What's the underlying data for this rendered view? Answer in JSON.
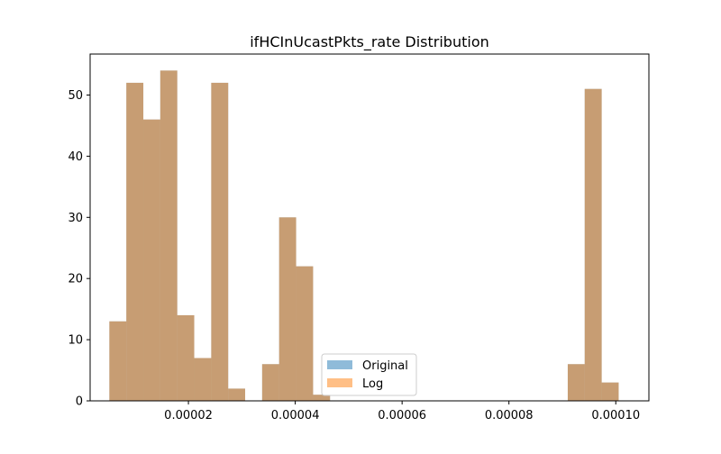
{
  "chart_data": {
    "type": "bar",
    "title": "ifHCInUcastPkts_rate Distribution",
    "xlabel": "",
    "ylabel": "",
    "xlim": [
      1.6e-06,
      0.0001062
    ],
    "ylim": [
      0,
      56.7
    ],
    "x_ticks": [
      {
        "value": 2e-05,
        "label": "0.00002"
      },
      {
        "value": 4e-05,
        "label": "0.00004"
      },
      {
        "value": 6e-05,
        "label": "0.00006"
      },
      {
        "value": 8e-05,
        "label": "0.00008"
      },
      {
        "value": 0.0001,
        "label": "0.00010"
      }
    ],
    "y_ticks": [
      {
        "value": 0,
        "label": "0"
      },
      {
        "value": 10,
        "label": "10"
      },
      {
        "value": 20,
        "label": "20"
      },
      {
        "value": 30,
        "label": "30"
      },
      {
        "value": 40,
        "label": "40"
      },
      {
        "value": 50,
        "label": "50"
      }
    ],
    "bin_edges": [
      5.2e-06,
      8.38e-06,
      1.156e-05,
      1.473e-05,
      1.791e-05,
      2.109e-05,
      2.427e-05,
      2.745e-05,
      3.062e-05,
      3.38e-05,
      3.698e-05,
      4.016e-05,
      4.334e-05,
      4.651e-05,
      4.969e-05,
      5.287e-05,
      5.605e-05,
      5.923e-05,
      6.24e-05,
      6.558e-05,
      6.876e-05,
      7.194e-05,
      7.512e-05,
      7.829e-05,
      8.147e-05,
      8.465e-05,
      8.783e-05,
      9.101e-05,
      9.418e-05,
      9.736e-05,
      0.00010054
    ],
    "grid": false,
    "legend_position": "lower-center",
    "series": [
      {
        "name": "Original",
        "color": "#1f77b4",
        "opacity": 0.5,
        "values": [
          13,
          52,
          46,
          54,
          14,
          7,
          52,
          2,
          0,
          6,
          30,
          22,
          1,
          0,
          0,
          0,
          0,
          0,
          0,
          0,
          0,
          0,
          0,
          0,
          0,
          0,
          0,
          6,
          51,
          3
        ]
      },
      {
        "name": "Log",
        "color": "#ff7f0e",
        "opacity": 0.5,
        "values": [
          13,
          52,
          46,
          54,
          14,
          7,
          52,
          2,
          0,
          6,
          30,
          22,
          1,
          0,
          0,
          0,
          0,
          0,
          0,
          0,
          0,
          0,
          0,
          0,
          0,
          0,
          0,
          6,
          51,
          3
        ]
      }
    ]
  }
}
